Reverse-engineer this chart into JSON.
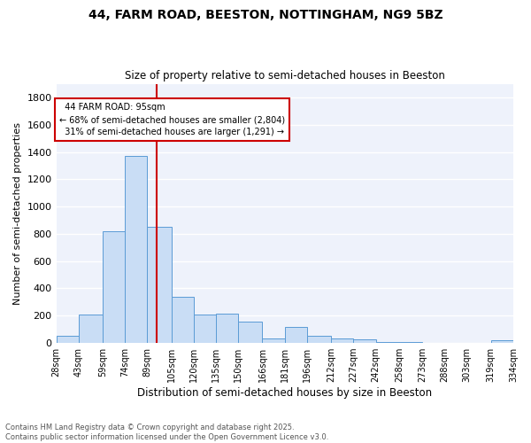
{
  "title_line1": "44, FARM ROAD, BEESTON, NOTTINGHAM, NG9 5BZ",
  "title_line2": "Size of property relative to semi-detached houses in Beeston",
  "xlabel": "Distribution of semi-detached houses by size in Beeston",
  "ylabel": "Number of semi-detached properties",
  "bin_edges": [
    28,
    43,
    59,
    74,
    89,
    105,
    120,
    135,
    150,
    166,
    181,
    196,
    212,
    227,
    242,
    258,
    273,
    288,
    303,
    319,
    334
  ],
  "bar_heights": [
    50,
    210,
    820,
    1370,
    850,
    340,
    210,
    215,
    155,
    30,
    120,
    50,
    30,
    25,
    10,
    5,
    2,
    2,
    2,
    20
  ],
  "bar_color": "#c9ddf5",
  "bar_edge_color": "#5b9bd5",
  "property_size": 95,
  "property_label": "44 FARM ROAD: 95sqm",
  "pct_smaller": 68,
  "count_smaller": 2804,
  "pct_larger": 31,
  "count_larger": 1291,
  "vline_color": "#cc0000",
  "annotation_box_color": "#cc0000",
  "ylim": [
    0,
    1900
  ],
  "yticks": [
    0,
    200,
    400,
    600,
    800,
    1000,
    1200,
    1400,
    1600,
    1800
  ],
  "footnote1": "Contains HM Land Registry data © Crown copyright and database right 2025.",
  "footnote2": "Contains public sector information licensed under the Open Government Licence v3.0.",
  "bg_color": "#eef2fb",
  "grid_color": "#ffffff",
  "tick_labels": [
    "28sqm",
    "43sqm",
    "59sqm",
    "74sqm",
    "89sqm",
    "105sqm",
    "120sqm",
    "135sqm",
    "150sqm",
    "166sqm",
    "181sqm",
    "196sqm",
    "212sqm",
    "227sqm",
    "242sqm",
    "258sqm",
    "273sqm",
    "288sqm",
    "303sqm",
    "319sqm",
    "334sqm"
  ]
}
